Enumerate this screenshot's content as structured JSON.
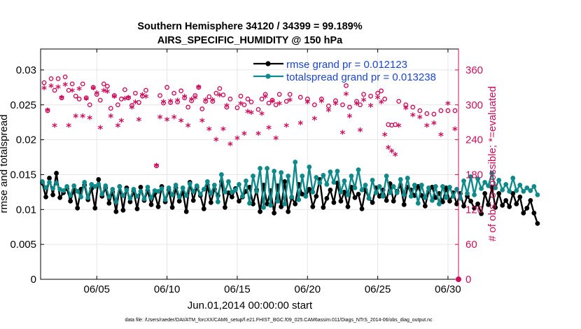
{
  "colors": {
    "rmse": "#000000",
    "spread": "#0e8a8a",
    "obs": "#d00c5c",
    "legend_text": "#1a44d8",
    "grid": "#e6e6e6"
  },
  "chart_data": {
    "type": "line",
    "title": "Southern Hemisphere 34120 / 34399 = 99.189%",
    "subtitle": "AIRS_SPECIFIC_HUMIDITY @ 150 hPa",
    "xlabel": "Jun.01,2014 00:00:00 start",
    "ylabel_left": "rmse and totalspread",
    "ylabel_right": "# of obs: o=possible; *=evaluated",
    "footer": "data file: /Users/raeder/DAI/ATM_forcXX/CAM6_setup/f.e21.FHIST_BGC.f09_025.CAM6assim.011/Diags_NTrS_2014-06/obs_diag_output.nc",
    "xlim": [
      1.0,
      30.75
    ],
    "ylim_left": [
      0,
      0.033
    ],
    "ylim_right": [
      0,
      396
    ],
    "x_ticks": [
      5,
      10,
      15,
      20,
      25,
      30
    ],
    "x_tick_labels": [
      "06/05",
      "06/10",
      "06/15",
      "06/20",
      "06/25",
      "06/30"
    ],
    "y_left_ticks": [
      0,
      0.005,
      0.01,
      0.015,
      0.02,
      0.025,
      0.03
    ],
    "y_left_tick_labels": [
      "0",
      "0.005",
      "0.01",
      "0.015",
      "0.02",
      "0.025",
      "0.03"
    ],
    "y_right_ticks": [
      0,
      60,
      120,
      180,
      240,
      300,
      360
    ],
    "y_right_tick_labels": [
      "0",
      "60",
      "120",
      "180",
      "240",
      "300",
      "360"
    ],
    "x_start": 1.125,
    "x_step": 0.25,
    "series": [
      {
        "name": "rmse grand pr = 0.012123",
        "axis": "left",
        "values": [
          0.0138,
          0.0118,
          0.0145,
          0.0121,
          0.0152,
          0.0117,
          0.0124,
          0.013,
          0.0112,
          0.0128,
          0.0102,
          0.0129,
          0.0135,
          0.0114,
          0.013,
          0.0102,
          0.0143,
          0.0119,
          0.0131,
          0.0109,
          0.0125,
          0.0097,
          0.0133,
          0.0099,
          0.0131,
          0.0111,
          0.0126,
          0.0101,
          0.0132,
          0.0113,
          0.0127,
          0.0107,
          0.0123,
          0.0104,
          0.0133,
          0.0111,
          0.0128,
          0.0103,
          0.0131,
          0.0112,
          0.0125,
          0.0097,
          0.0139,
          0.0113,
          0.0132,
          0.012,
          0.0101,
          0.0135,
          0.011,
          0.0129,
          0.012,
          0.014,
          0.0103,
          0.0124,
          0.0118,
          0.013,
          0.0112,
          0.0118,
          0.0126,
          0.0132,
          0.0108,
          0.0128,
          0.0097,
          0.0135,
          0.0108,
          0.0127,
          0.0095,
          0.0134,
          0.0104,
          0.014,
          0.0097,
          0.0117,
          0.0108,
          0.0136,
          0.0122,
          0.0119,
          0.0129,
          0.0104,
          0.0119,
          0.0143,
          0.0103,
          0.0116,
          0.0128,
          0.011,
          0.0138,
          0.0112,
          0.0125,
          0.0104,
          0.0132,
          0.0117,
          0.0122,
          0.0101,
          0.0128,
          0.0116,
          0.011,
          0.0131,
          0.0119,
          0.0128,
          0.0113,
          0.0137,
          0.0112,
          0.0126,
          0.0135,
          0.0107,
          0.0132,
          0.0128,
          0.012,
          0.0133,
          0.012,
          0.0105,
          0.0126,
          0.0132,
          0.0117,
          0.0123,
          0.0111,
          0.0131,
          0.0112,
          0.0124,
          0.0108,
          0.0123,
          0.0105,
          0.0119,
          0.0112,
          0.0102,
          0.0108,
          0.0094,
          0.0123,
          0.0107,
          0.0132,
          0.0103,
          0.0123,
          0.0106,
          0.0113,
          0.0104,
          0.0123,
          0.0108,
          0.0118,
          0.0095,
          0.0102,
          0.0113,
          0.0095,
          0.008
        ]
      },
      {
        "name": "totalspread grand pr = 0.013238",
        "axis": "left",
        "values": [
          0.014,
          0.0131,
          0.0139,
          0.013,
          0.0138,
          0.0129,
          0.0127,
          0.0133,
          0.012,
          0.0134,
          0.0126,
          0.0118,
          0.0139,
          0.0117,
          0.0136,
          0.0133,
          0.0136,
          0.0122,
          0.0134,
          0.0118,
          0.0129,
          0.0111,
          0.0133,
          0.012,
          0.0128,
          0.0116,
          0.0129,
          0.0119,
          0.0126,
          0.0115,
          0.0132,
          0.0117,
          0.0127,
          0.0126,
          0.013,
          0.0114,
          0.0131,
          0.0121,
          0.0135,
          0.0118,
          0.0131,
          0.012,
          0.0137,
          0.0126,
          0.0134,
          0.0122,
          0.0129,
          0.014,
          0.0123,
          0.0135,
          0.0111,
          0.015,
          0.0125,
          0.014,
          0.0125,
          0.0128,
          0.0136,
          0.0119,
          0.0141,
          0.0109,
          0.0148,
          0.0126,
          0.0159,
          0.0103,
          0.0159,
          0.0106,
          0.0155,
          0.0112,
          0.0153,
          0.0108,
          0.0148,
          0.0118,
          0.0168,
          0.0114,
          0.0148,
          0.0119,
          0.0161,
          0.0125,
          0.0146,
          0.0138,
          0.0149,
          0.0136,
          0.0154,
          0.0139,
          0.0155,
          0.0125,
          0.0141,
          0.0121,
          0.0148,
          0.0131,
          0.0157,
          0.0128,
          0.0135,
          0.0116,
          0.0142,
          0.0124,
          0.0133,
          0.0119,
          0.0148,
          0.0124,
          0.0133,
          0.0124,
          0.0143,
          0.0121,
          0.0145,
          0.0119,
          0.0135,
          0.0109,
          0.0135,
          0.0117,
          0.0131,
          0.0113,
          0.0133,
          0.0108,
          0.0133,
          0.0117,
          0.0132,
          0.0119,
          0.0129,
          0.0116,
          0.0141,
          0.0123,
          0.0147,
          0.0121,
          0.0144,
          0.013,
          0.0139,
          0.0134,
          0.0152,
          0.0131,
          0.0142,
          0.0128,
          0.0136,
          0.0126,
          0.0145,
          0.0127,
          0.0135,
          0.0126,
          0.0131,
          0.0127,
          0.0133,
          0.0121
        ]
      }
    ],
    "obs_possible": {
      "name": "possible (o)",
      "axis": "right",
      "points": [
        [
          1.25,
          338
        ],
        [
          1.5,
          290
        ],
        [
          1.75,
          345
        ],
        [
          2.0,
          325
        ],
        [
          2.25,
          345
        ],
        [
          2.5,
          312
        ],
        [
          2.75,
          348
        ],
        [
          3.0,
          325
        ],
        [
          3.25,
          336
        ],
        [
          3.5,
          315
        ],
        [
          3.75,
          310
        ],
        [
          4.0,
          336
        ],
        [
          4.25,
          312
        ],
        [
          4.5,
          300
        ],
        [
          4.75,
          330
        ],
        [
          5.0,
          318
        ],
        [
          5.25,
          308
        ],
        [
          5.5,
          336
        ],
        [
          5.75,
          332
        ],
        [
          6.0,
          294
        ],
        [
          6.25,
          316
        ],
        [
          6.5,
          300
        ],
        [
          6.75,
          310
        ],
        [
          7.0,
          326
        ],
        [
          7.25,
          312
        ],
        [
          7.5,
          299
        ],
        [
          7.75,
          320
        ],
        [
          8.0,
          304
        ],
        [
          8.25,
          315
        ],
        [
          8.5,
          325
        ],
        [
          9.25,
          195
        ],
        [
          9.5,
          316
        ],
        [
          9.75,
          303
        ],
        [
          10.0,
          330
        ],
        [
          10.25,
          304
        ],
        [
          10.5,
          320
        ],
        [
          10.75,
          305
        ],
        [
          11.0,
          324
        ],
        [
          11.25,
          312
        ],
        [
          11.5,
          296
        ],
        [
          11.75,
          307
        ],
        [
          12.0,
          316
        ],
        [
          12.25,
          330
        ],
        [
          12.5,
          293
        ],
        [
          12.75,
          306
        ],
        [
          13.0,
          314
        ],
        [
          13.25,
          306
        ],
        [
          13.5,
          320
        ],
        [
          13.75,
          328
        ],
        [
          14.0,
          317
        ],
        [
          14.25,
          296
        ],
        [
          14.5,
          310
        ],
        [
          15.0,
          295
        ],
        [
          15.25,
          315
        ],
        [
          15.5,
          300
        ],
        [
          15.75,
          310
        ],
        [
          16.0,
          305
        ],
        [
          16.5,
          292
        ],
        [
          16.75,
          310
        ],
        [
          17.0,
          318
        ],
        [
          17.25,
          303
        ],
        [
          17.5,
          308
        ],
        [
          17.75,
          300
        ],
        [
          18.0,
          318
        ],
        [
          18.5,
          306
        ],
        [
          18.75,
          318
        ],
        [
          19.5,
          313
        ],
        [
          20.0,
          310
        ],
        [
          20.5,
          300
        ],
        [
          21.0,
          310
        ],
        [
          21.5,
          298
        ],
        [
          22.0,
          307
        ],
        [
          22.5,
          300
        ],
        [
          22.75,
          333
        ],
        [
          23.0,
          296
        ],
        [
          23.5,
          306
        ],
        [
          23.75,
          300
        ],
        [
          24.0,
          318
        ],
        [
          24.5,
          315
        ],
        [
          25.0,
          320
        ],
        [
          25.25,
          324
        ],
        [
          25.5,
          310
        ],
        [
          25.75,
          266
        ],
        [
          26.0,
          265
        ],
        [
          26.25,
          266
        ],
        [
          26.5,
          306
        ],
        [
          27.0,
          300
        ],
        [
          27.5,
          296
        ],
        [
          28.0,
          290
        ],
        [
          28.5,
          285
        ],
        [
          29.0,
          284
        ],
        [
          29.5,
          290
        ],
        [
          30.0,
          290
        ],
        [
          30.5,
          290
        ]
      ]
    },
    "obs_evaluated": {
      "name": "evaluated (*)",
      "axis": "right",
      "points": [
        [
          1.25,
          326
        ],
        [
          1.5,
          288
        ],
        [
          1.75,
          330
        ],
        [
          2.0,
          262
        ],
        [
          2.25,
          328
        ],
        [
          2.5,
          310
        ],
        [
          2.75,
          332
        ],
        [
          3.0,
          262
        ],
        [
          3.25,
          322
        ],
        [
          3.5,
          278
        ],
        [
          3.75,
          325
        ],
        [
          4.0,
          278
        ],
        [
          4.25,
          308
        ],
        [
          4.5,
          275
        ],
        [
          4.75,
          326
        ],
        [
          5.0,
          318
        ],
        [
          5.25,
          258
        ],
        [
          5.5,
          322
        ],
        [
          5.75,
          320
        ],
        [
          6.0,
          278
        ],
        [
          6.25,
          312
        ],
        [
          6.5,
          262
        ],
        [
          6.75,
          270
        ],
        [
          7.0,
          308
        ],
        [
          7.25,
          310
        ],
        [
          7.5,
          293
        ],
        [
          7.75,
          302
        ],
        [
          8.0,
          272
        ],
        [
          8.25,
          315
        ],
        [
          8.5,
          312
        ],
        [
          9.25,
          193
        ],
        [
          9.5,
          276
        ],
        [
          9.75,
          303
        ],
        [
          10.0,
          272
        ],
        [
          10.25,
          304
        ],
        [
          10.5,
          276
        ],
        [
          10.75,
          305
        ],
        [
          11.0,
          270
        ],
        [
          11.25,
          312
        ],
        [
          11.5,
          262
        ],
        [
          11.75,
          307
        ],
        [
          12.0,
          310
        ],
        [
          12.25,
          328
        ],
        [
          12.5,
          270
        ],
        [
          12.75,
          306
        ],
        [
          13.0,
          256
        ],
        [
          13.25,
          306
        ],
        [
          13.5,
          238
        ],
        [
          13.75,
          314
        ],
        [
          14.0,
          256
        ],
        [
          14.25,
          296
        ],
        [
          14.5,
          230
        ],
        [
          15.0,
          240
        ],
        [
          15.25,
          300
        ],
        [
          15.5,
          248
        ],
        [
          15.75,
          286
        ],
        [
          16.0,
          284
        ],
        [
          16.5,
          248
        ],
        [
          16.75,
          282
        ],
        [
          17.0,
          312
        ],
        [
          17.25,
          258
        ],
        [
          17.5,
          304
        ],
        [
          17.75,
          240
        ],
        [
          18.0,
          300
        ],
        [
          18.5,
          262
        ],
        [
          18.75,
          306
        ],
        [
          19.5,
          266
        ],
        [
          20.0,
          302
        ],
        [
          20.5,
          274
        ],
        [
          21.0,
          304
        ],
        [
          21.5,
          288
        ],
        [
          22.0,
          300
        ],
        [
          22.5,
          250
        ],
        [
          22.75,
          316
        ],
        [
          23.0,
          278
        ],
        [
          23.5,
          300
        ],
        [
          23.75,
          254
        ],
        [
          24.0,
          306
        ],
        [
          24.5,
          296
        ],
        [
          25.0,
          310
        ],
        [
          25.25,
          302
        ],
        [
          25.5,
          246
        ],
        [
          25.75,
          224
        ],
        [
          26.0,
          218
        ],
        [
          26.25,
          212
        ],
        [
          26.5,
          262
        ],
        [
          27.0,
          292
        ],
        [
          27.5,
          280
        ],
        [
          28.0,
          276
        ],
        [
          28.5,
          262
        ],
        [
          29.0,
          266
        ],
        [
          29.5,
          246
        ],
        [
          30.0,
          300
        ],
        [
          30.5,
          256
        ]
      ]
    }
  }
}
